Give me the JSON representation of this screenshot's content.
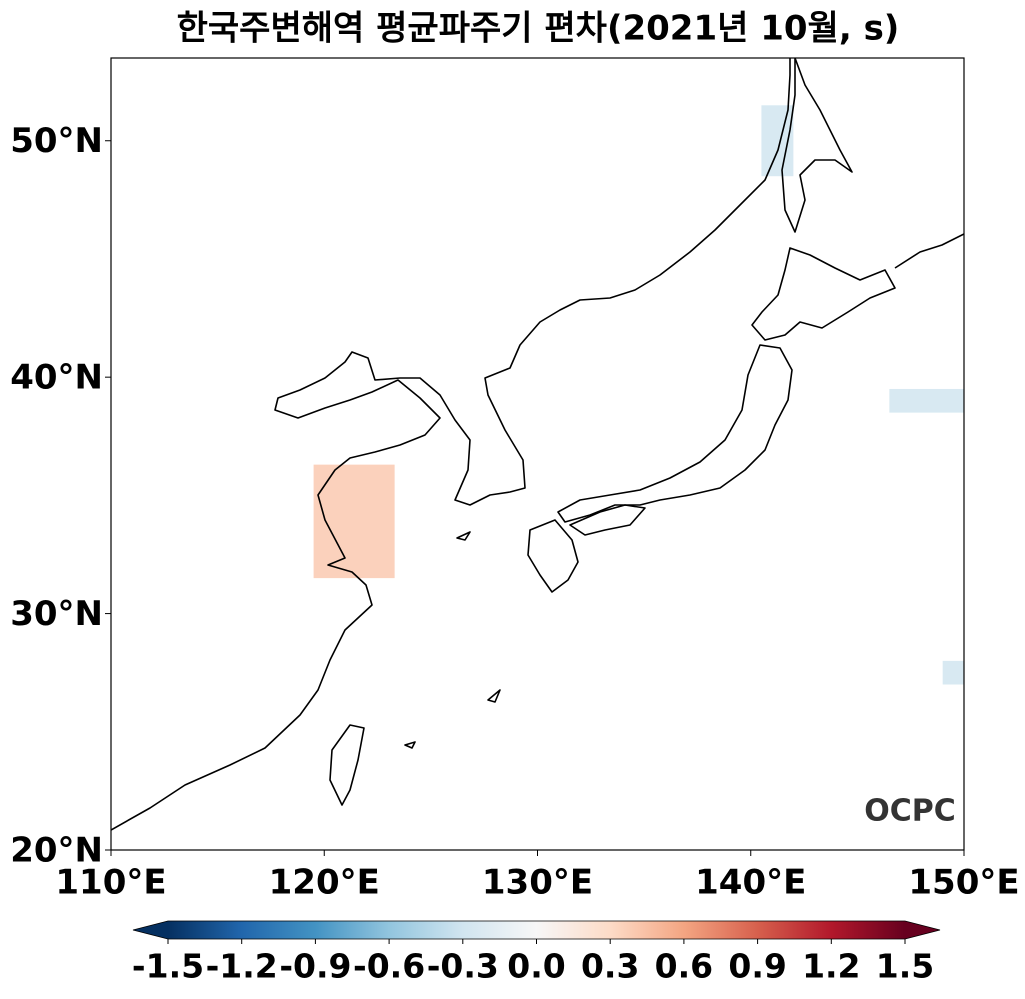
{
  "chart_data": {
    "type": "map",
    "title": "한국주변해역 평균파주기 편차(2021년 10월, s)",
    "xlim": [
      110,
      150
    ],
    "ylim": [
      20,
      53.5
    ],
    "xticks": [
      {
        "value": 110,
        "label": "110°E"
      },
      {
        "value": 120,
        "label": "120°E"
      },
      {
        "value": 130,
        "label": "130°E"
      },
      {
        "value": 140,
        "label": "140°E"
      },
      {
        "value": 150,
        "label": "150°E"
      }
    ],
    "yticks": [
      {
        "value": 20,
        "label": "20°N"
      },
      {
        "value": 30,
        "label": "30°N"
      },
      {
        "value": 40,
        "label": "40°N"
      },
      {
        "value": 50,
        "label": "50°N"
      }
    ],
    "colormap": "RdBu_r",
    "clim": [
      -1.5,
      1.5
    ],
    "cticks": [
      -1.5,
      -1.2,
      -0.9,
      -0.6,
      -0.3,
      {
        "value": 0,
        "label": "0.0"
      },
      0.3,
      0.6,
      0.9,
      1.2,
      1.5
    ],
    "patches": [
      {
        "lon": [
          119.5,
          123.3
        ],
        "lat": [
          31.5,
          36.3
        ],
        "value": 0.4
      },
      {
        "lon": [
          140.5,
          142
        ],
        "lat": [
          48.5,
          51.5
        ],
        "value": -0.3
      },
      {
        "lon": [
          146.5,
          150
        ],
        "lat": [
          38.5,
          39.5
        ],
        "value": -0.3
      },
      {
        "lon": [
          149,
          150
        ],
        "lat": [
          27,
          28
        ],
        "value": -0.3
      }
    ],
    "logo": "OCPC"
  }
}
